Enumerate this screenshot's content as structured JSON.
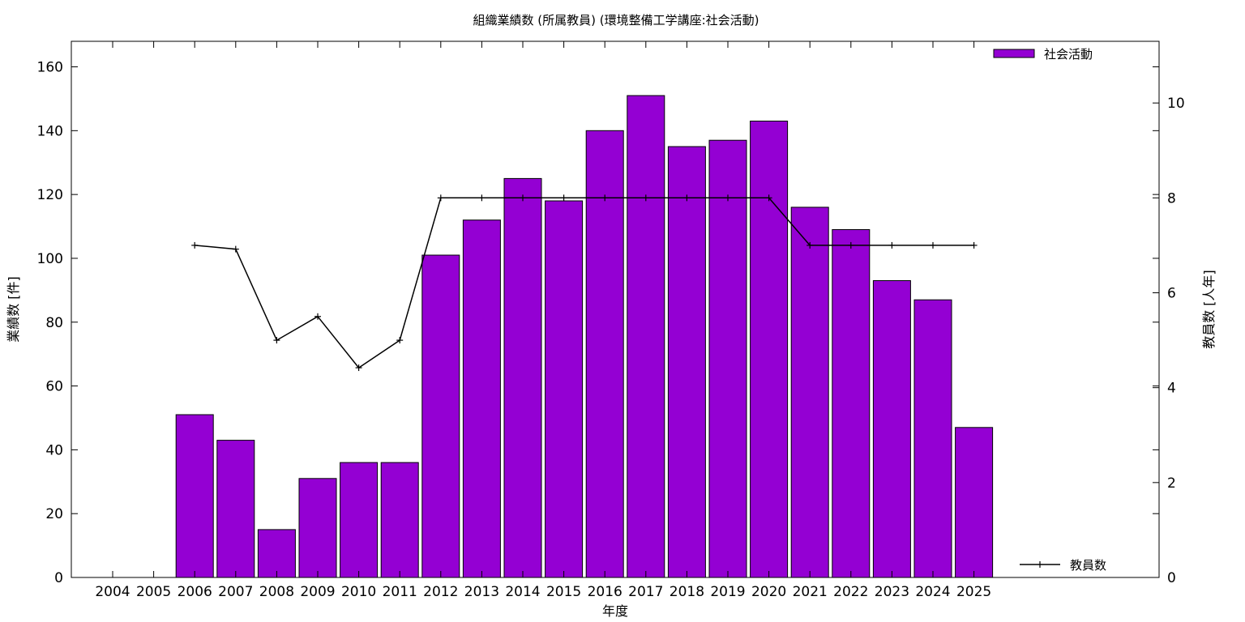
{
  "chart_data": {
    "type": "bar",
    "title": "組織業績数 (所属教員) (環境整備工学講座:社会活動)",
    "xlabel": "年度",
    "ylabel": "業績数 [件]",
    "y2label": "教員数 [人年]",
    "categories": [
      "2004",
      "2005",
      "2006",
      "2007",
      "2008",
      "2009",
      "2010",
      "2011",
      "2012",
      "2013",
      "2014",
      "2015",
      "2016",
      "2017",
      "2018",
      "2019",
      "2020",
      "2021",
      "2022",
      "2023",
      "2024",
      "2025"
    ],
    "ylim": [
      0,
      168
    ],
    "y_ticks": [
      0,
      20,
      40,
      60,
      80,
      100,
      120,
      140,
      160
    ],
    "y2lim": [
      0,
      11.3
    ],
    "y2_ticks": [
      0,
      2,
      4,
      6,
      8,
      10
    ],
    "grid": false,
    "legend": [
      {
        "name": "社会活動",
        "type": "bar",
        "position": "top-right"
      },
      {
        "name": "教員数",
        "type": "line",
        "position": "bottom-right"
      }
    ],
    "series": [
      {
        "name": "社会活動",
        "type": "bar",
        "axis": "left",
        "color": "#9400d3",
        "values": [
          null,
          null,
          51,
          43,
          15,
          31,
          36,
          36,
          101,
          112,
          125,
          118,
          140,
          151,
          135,
          137,
          143,
          116,
          109,
          93,
          87,
          47
        ]
      },
      {
        "name": "教員数",
        "type": "line",
        "axis": "right",
        "color": "#000000",
        "values": [
          null,
          null,
          7.0,
          6.92,
          5.0,
          5.5,
          4.42,
          5.0,
          8.0,
          8.0,
          8.0,
          8.0,
          8.0,
          8.0,
          8.0,
          8.0,
          8.0,
          7.0,
          7.0,
          7.0,
          7.0,
          7.0
        ]
      }
    ]
  }
}
